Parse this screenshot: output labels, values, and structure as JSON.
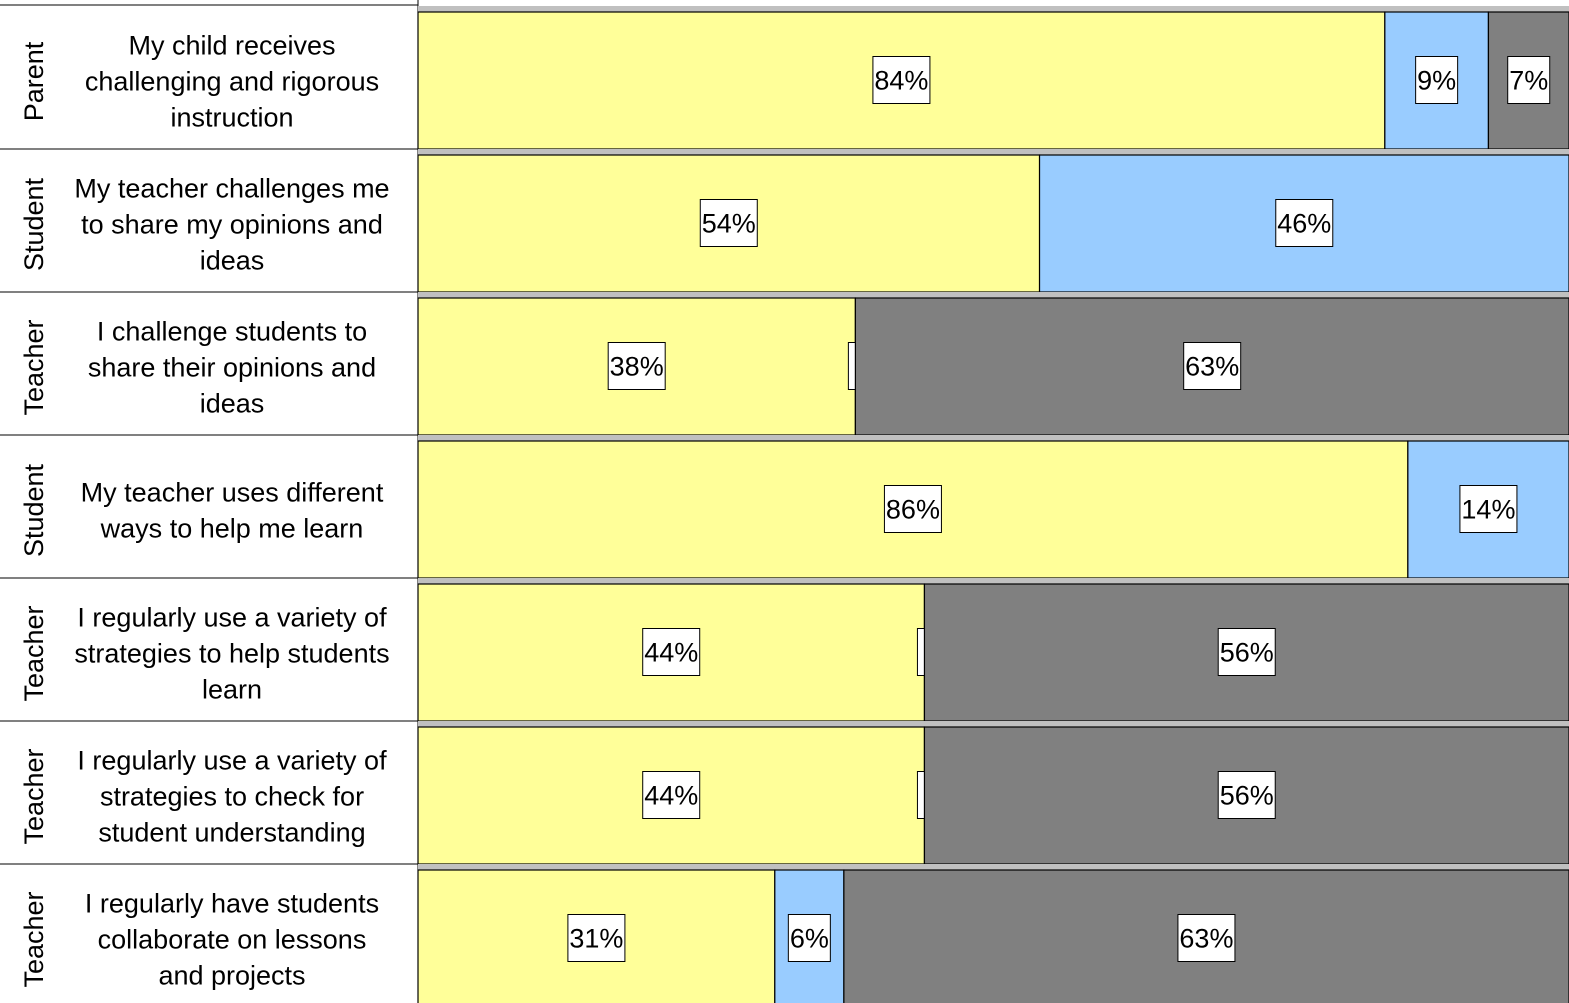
{
  "chart_data": {
    "type": "bar",
    "orientation": "horizontal",
    "stacked": true,
    "xlim": [
      0,
      100
    ],
    "colors": {
      "segment_1": "#ffff99",
      "segment_2": "#99ccff",
      "segment_3": "#808080",
      "row_gap": "#c0c0c0"
    },
    "rows": [
      {
        "respondent": "Parent",
        "question": [
          "My child receives",
          "challenging and rigorous",
          "instruction"
        ],
        "values": [
          84,
          9,
          7
        ],
        "labels": [
          "84%",
          "9%",
          "7%"
        ]
      },
      {
        "respondent": "Student",
        "question": [
          "My teacher challenges me",
          "to share my opinions and",
          "ideas"
        ],
        "values": [
          54,
          46,
          0
        ],
        "labels": [
          "54%",
          "46%",
          ""
        ]
      },
      {
        "respondent": "Teacher",
        "question": [
          "I challenge students to",
          "share their opinions and",
          "ideas"
        ],
        "values": [
          38,
          0,
          63
        ],
        "labels": [
          "38%",
          "",
          "63%"
        ]
      },
      {
        "respondent": "Student",
        "question": [
          "My teacher uses different",
          "ways to help me learn"
        ],
        "values": [
          86,
          14,
          0
        ],
        "labels": [
          "86%",
          "14%",
          ""
        ]
      },
      {
        "respondent": "Teacher",
        "question": [
          "I regularly use a variety of",
          "strategies to help students",
          "learn"
        ],
        "values": [
          44,
          0,
          56
        ],
        "labels": [
          "44%",
          "",
          "56%"
        ]
      },
      {
        "respondent": "Teacher",
        "question": [
          "I regularly use a variety of",
          "strategies to check for",
          "student understanding"
        ],
        "values": [
          44,
          0,
          56
        ],
        "labels": [
          "44%",
          "",
          "56%"
        ]
      },
      {
        "respondent": "Teacher",
        "question": [
          "I regularly have students",
          "collaborate on lessons",
          "and projects"
        ],
        "values": [
          31,
          6,
          63
        ],
        "labels": [
          "31%",
          "6%",
          "63%"
        ]
      }
    ]
  }
}
